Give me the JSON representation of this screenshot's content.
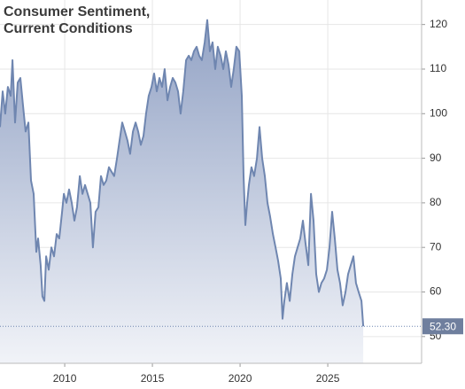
{
  "chart_data": {
    "type": "area",
    "title": "Consumer Sentiment, Current Conditions",
    "xlim": [
      2006.31,
      2030.35
    ],
    "ylim": [
      44,
      125.5
    ],
    "xticks": [
      2010,
      2015,
      2020,
      2025
    ],
    "yticks": [
      50,
      60,
      70,
      80,
      90,
      100,
      110,
      120
    ],
    "grid": true,
    "series": [
      {
        "color": "#6f86b0",
        "x": [
          2006.31,
          2006.46,
          2006.61,
          2006.76,
          2006.92,
          2007.02,
          2007.17,
          2007.32,
          2007.47,
          2007.62,
          2007.77,
          2007.93,
          2008.08,
          2008.23,
          2008.38,
          2008.48,
          2008.63,
          2008.73,
          2008.84,
          2008.94,
          2009.09,
          2009.24,
          2009.39,
          2009.54,
          2009.69,
          2009.85,
          2009.95,
          2010.1,
          2010.25,
          2010.4,
          2010.55,
          2010.7,
          2010.86,
          2011.01,
          2011.16,
          2011.31,
          2011.46,
          2011.61,
          2011.76,
          2011.92,
          2012.07,
          2012.22,
          2012.37,
          2012.52,
          2012.67,
          2012.82,
          2012.98,
          2013.13,
          2013.28,
          2013.43,
          2013.58,
          2013.73,
          2013.89,
          2014.04,
          2014.19,
          2014.34,
          2014.49,
          2014.64,
          2014.79,
          2014.95,
          2015.1,
          2015.25,
          2015.4,
          2015.55,
          2015.7,
          2015.86,
          2016.01,
          2016.16,
          2016.31,
          2016.46,
          2016.61,
          2016.76,
          2016.92,
          2017.07,
          2017.22,
          2017.37,
          2017.52,
          2017.67,
          2017.82,
          2017.98,
          2018.13,
          2018.28,
          2018.43,
          2018.58,
          2018.73,
          2018.89,
          2019.04,
          2019.19,
          2019.34,
          2019.49,
          2019.64,
          2019.79,
          2019.95,
          2020.1,
          2020.2,
          2020.3,
          2020.4,
          2020.5,
          2020.65,
          2020.8,
          2020.96,
          2021.11,
          2021.26,
          2021.41,
          2021.56,
          2021.71,
          2021.87,
          2022.02,
          2022.17,
          2022.32,
          2022.42,
          2022.52,
          2022.67,
          2022.83,
          2022.98,
          2023.13,
          2023.28,
          2023.43,
          2023.58,
          2023.73,
          2023.89,
          2024.04,
          2024.19,
          2024.34,
          2024.49,
          2024.64,
          2024.79,
          2024.95,
          2025.1,
          2025.25,
          2025.4,
          2025.55,
          2025.7,
          2025.85,
          2026.01,
          2026.16,
          2026.31,
          2026.46,
          2026.61,
          2026.76,
          2026.92,
          2027.02
        ],
        "values": [
          97,
          105,
          100,
          106,
          104,
          112,
          98,
          107,
          108,
          102,
          96,
          98,
          85,
          82,
          69,
          72,
          66,
          59,
          58,
          68,
          65,
          70,
          68,
          73,
          72,
          78,
          82,
          80,
          83,
          80,
          76,
          79,
          86,
          82,
          84,
          82,
          80,
          70,
          78,
          79,
          86,
          84,
          85,
          88,
          87,
          86,
          90,
          94,
          98,
          96,
          94,
          91,
          96,
          98,
          96,
          93,
          95,
          100,
          104,
          106,
          109,
          105,
          108,
          106,
          110,
          103,
          106,
          108,
          107,
          105,
          100,
          105,
          112,
          113,
          112,
          114,
          115,
          113,
          112,
          116,
          121,
          114,
          116,
          110,
          115,
          113,
          110,
          114,
          111,
          106,
          110,
          115,
          114,
          104,
          86,
          75,
          80,
          84,
          88,
          86,
          90,
          97,
          90,
          86,
          80,
          77,
          73,
          70,
          67,
          63,
          54,
          58,
          62,
          58,
          64,
          68,
          70,
          72,
          76,
          71,
          66,
          82,
          76,
          64,
          60,
          62,
          63,
          65,
          70,
          78,
          72,
          65,
          62,
          57,
          60,
          64,
          66,
          68,
          62,
          60,
          58,
          52.3
        ],
        "value_labels": [
          null,
          null,
          null,
          null,
          null,
          null,
          null,
          null,
          null,
          null,
          null,
          null,
          null,
          null,
          null,
          null,
          null,
          null,
          null,
          null,
          null,
          null,
          null,
          null,
          null,
          null,
          null,
          null,
          null,
          null,
          null,
          null,
          null,
          null,
          null,
          null,
          null,
          null,
          null,
          null,
          null,
          null,
          null,
          null,
          null,
          null,
          null,
          null,
          null,
          null,
          null,
          null,
          null,
          null,
          null,
          null,
          null,
          null,
          null,
          null,
          null,
          null,
          null,
          null,
          null,
          null,
          null,
          null,
          null,
          null,
          null,
          null,
          null,
          null,
          null,
          null,
          null,
          null,
          null,
          null,
          null,
          null,
          null,
          null,
          null,
          null,
          null,
          null,
          null,
          null,
          null,
          null,
          null,
          null,
          null,
          null,
          null,
          null,
          null,
          null,
          null,
          null,
          null,
          null,
          null,
          null,
          null,
          null,
          null,
          null,
          null,
          null,
          null,
          null,
          null,
          null,
          null,
          null,
          null,
          null,
          null,
          null,
          null,
          null,
          null,
          null,
          null,
          null,
          null,
          null,
          null,
          null,
          null,
          null,
          null,
          null,
          null,
          null,
          null,
          null,
          null,
          "52.30"
        ]
      }
    ]
  }
}
